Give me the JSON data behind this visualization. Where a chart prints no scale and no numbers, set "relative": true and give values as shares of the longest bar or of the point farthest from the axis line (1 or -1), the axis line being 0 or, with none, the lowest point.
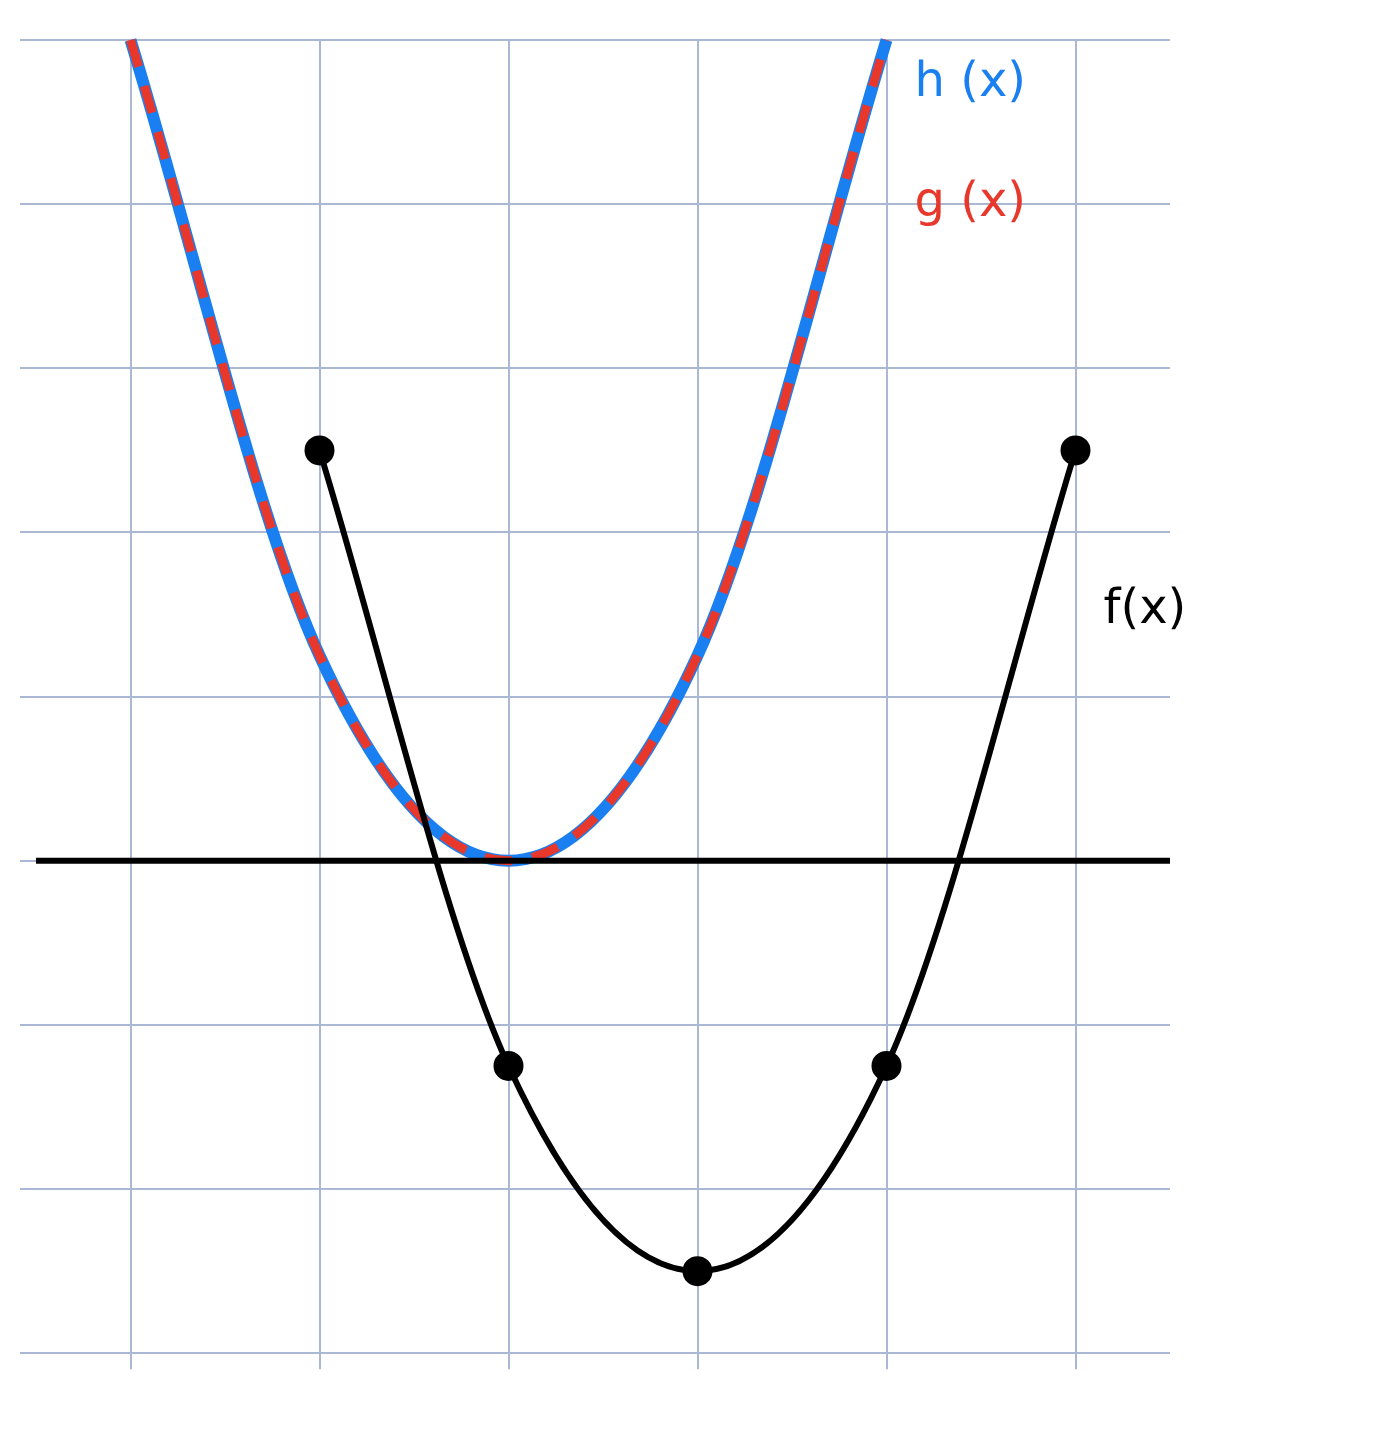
{
  "chart_data": {
    "type": "line",
    "relative": true,
    "categories": [
      null,
      null,
      null,
      null,
      null,
      null
    ],
    "series": [
      {
        "name": "h (x)",
        "color": "#1a7ff0",
        "values": [
          1,
          0.25,
          0,
          0.25,
          1,
          null
        ],
        "line_style": "solid",
        "marker": "none"
      },
      {
        "name": "g (x)",
        "color": "#e8382c",
        "values": [
          1,
          0.25,
          0,
          0.25,
          1,
          null
        ],
        "line_style": "dashed",
        "marker": "none"
      },
      {
        "name": "f(x)",
        "color": "#000000",
        "values": [
          null,
          0.5,
          -0.25,
          -0.5,
          -0.25,
          0.5
        ],
        "line_style": "solid",
        "marker": "circle"
      }
    ],
    "grid": true,
    "legend": false
  }
}
